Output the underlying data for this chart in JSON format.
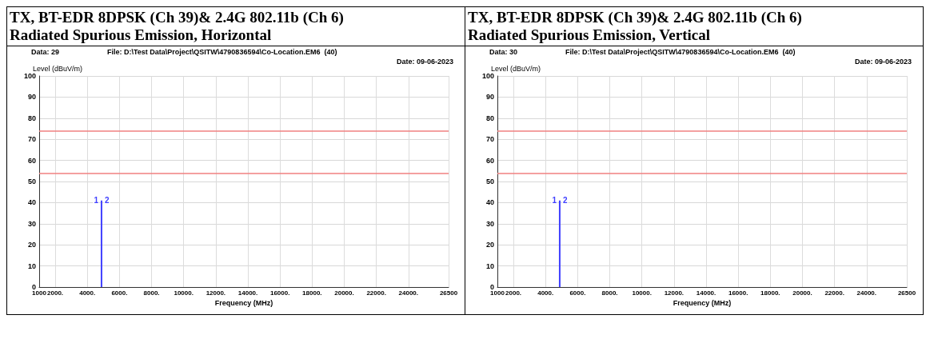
{
  "chart_data": [
    {
      "type": "bar",
      "title": "TX, BT-EDR 8DPSK (Ch 39)& 2.4G 802.11b (Ch 6)",
      "subtitle": "Radiated Spurious Emission, Horizontal",
      "xlabel": "Frequency (MHz)",
      "ylabel": "Level (dBuV/m)",
      "annotations": [
        "Data: 29",
        "File: D:\\Test Data\\Project\\QSITW\\4790836594\\Co-Location.EM6  (40)",
        "Date: 09-06-2023",
        "1",
        "2"
      ],
      "series": [
        {
          "x": [
            4882
          ],
          "values": [
            41
          ],
          "color": "#4040ff"
        }
      ],
      "xlim": [
        1000,
        26500
      ],
      "xticks": [
        {
          "value": 1000,
          "label": "1000"
        },
        {
          "value": 2000,
          "label": "2000."
        },
        {
          "value": 4000,
          "label": "4000."
        },
        {
          "value": 6000,
          "label": "6000."
        },
        {
          "value": 8000,
          "label": "8000."
        },
        {
          "value": 10000,
          "label": "10000."
        },
        {
          "value": 12000,
          "label": "12000."
        },
        {
          "value": 14000,
          "label": "14000."
        },
        {
          "value": 16000,
          "label": "16000."
        },
        {
          "value": 18000,
          "label": "18000."
        },
        {
          "value": 20000,
          "label": "20000."
        },
        {
          "value": 22000,
          "label": "22000."
        },
        {
          "value": 24000,
          "label": "24000."
        },
        {
          "value": 26500,
          "label": "26500"
        }
      ],
      "ylim": [
        0,
        100
      ],
      "yticks": [
        0,
        10,
        20,
        30,
        40,
        50,
        60,
        70,
        80,
        90,
        100
      ],
      "grid": true,
      "ref_lines": [
        {
          "axis": "y",
          "value": 74,
          "color": "#f08080"
        },
        {
          "axis": "y",
          "value": 54,
          "color": "#f08080"
        }
      ]
    },
    {
      "type": "bar",
      "title": "TX, BT-EDR 8DPSK (Ch 39)& 2.4G 802.11b (Ch 6)",
      "subtitle": "Radiated Spurious Emission, Vertical",
      "xlabel": "Frequency (MHz)",
      "ylabel": "Level (dBuV/m)",
      "annotations": [
        "Data: 30",
        "File: D:\\Test Data\\Project\\QSITW\\4790836594\\Co-Location.EM6  (40)",
        "Date: 09-06-2023",
        "1",
        "2"
      ],
      "series": [
        {
          "x": [
            4882
          ],
          "values": [
            41
          ],
          "color": "#4040ff"
        }
      ],
      "xlim": [
        1000,
        26500
      ],
      "xticks": [
        {
          "value": 1000,
          "label": "1000"
        },
        {
          "value": 2000,
          "label": "2000."
        },
        {
          "value": 4000,
          "label": "4000."
        },
        {
          "value": 6000,
          "label": "6000."
        },
        {
          "value": 8000,
          "label": "8000."
        },
        {
          "value": 10000,
          "label": "10000."
        },
        {
          "value": 12000,
          "label": "12000."
        },
        {
          "value": 14000,
          "label": "14000."
        },
        {
          "value": 16000,
          "label": "16000."
        },
        {
          "value": 18000,
          "label": "18000."
        },
        {
          "value": 20000,
          "label": "20000."
        },
        {
          "value": 22000,
          "label": "22000."
        },
        {
          "value": 24000,
          "label": "24000."
        },
        {
          "value": 26500,
          "label": "26500"
        }
      ],
      "ylim": [
        0,
        100
      ],
      "yticks": [
        0,
        10,
        20,
        30,
        40,
        50,
        60,
        70,
        80,
        90,
        100
      ],
      "grid": true,
      "ref_lines": [
        {
          "axis": "y",
          "value": 74,
          "color": "#f08080"
        },
        {
          "axis": "y",
          "value": 54,
          "color": "#f08080"
        }
      ]
    }
  ]
}
